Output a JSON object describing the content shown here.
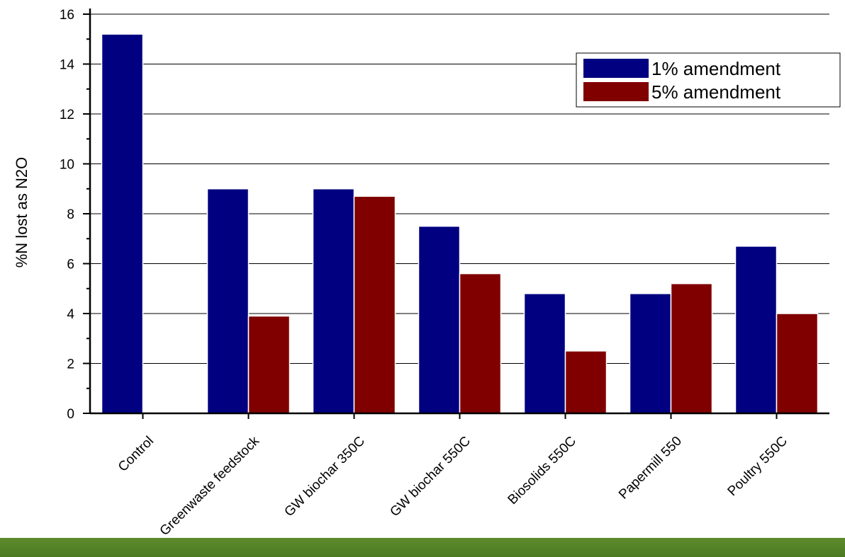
{
  "chart_data": {
    "type": "bar",
    "title": "",
    "xlabel": "",
    "ylabel": "%N lost as N2O",
    "ylim": [
      0,
      16
    ],
    "yticks": [
      0,
      2,
      4,
      6,
      8,
      10,
      12,
      14,
      16
    ],
    "grid": true,
    "legend_position": "top-right",
    "categories": [
      "Control",
      "Greenwaste feedstock",
      "GW biochar 350C",
      "GW biochar 550C",
      "Biosolids 550C",
      "Papermill 550",
      "Poultry 550C"
    ],
    "series": [
      {
        "name": "1% amendment",
        "color": "#000080",
        "values": [
          15.2,
          9.0,
          9.0,
          7.5,
          4.8,
          4.8,
          6.7
        ]
      },
      {
        "name": "5% amendment",
        "color": "#800000",
        "values": [
          0,
          3.9,
          8.7,
          5.6,
          2.5,
          5.2,
          4.0
        ]
      }
    ]
  },
  "footer": {
    "color": "#527f27"
  }
}
